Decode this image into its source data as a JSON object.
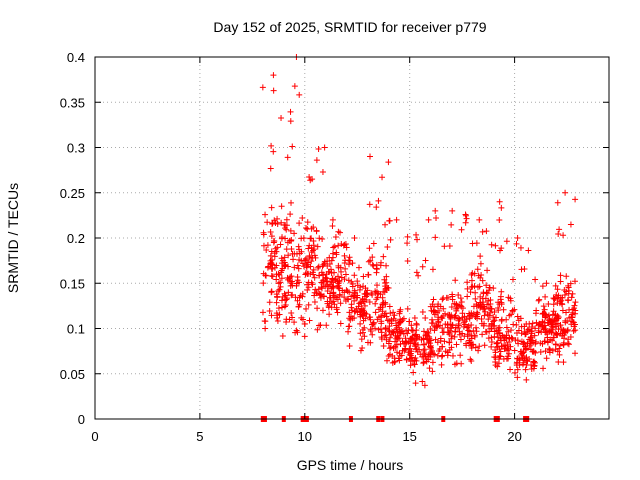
{
  "chart_data": {
    "type": "scatter",
    "title": "Day 152 of 2025, SRMTID for receiver p779",
    "xlabel": "GPS time / hours",
    "ylabel": "SRMTID / TECUs",
    "xlim": [
      0,
      24.5
    ],
    "ylim": [
      0,
      0.4
    ],
    "xticks": [
      0,
      5,
      10,
      15,
      20
    ],
    "xtick_labels": [
      "0",
      "5",
      "10",
      "15",
      "20"
    ],
    "yticks": [
      0,
      0.05,
      0.1,
      0.15,
      0.2,
      0.25,
      0.3,
      0.35,
      0.4
    ],
    "ytick_labels": [
      "0",
      "0.05",
      "0.1",
      "0.15",
      "0.2",
      "0.25",
      "0.3",
      "0.35",
      "0.4"
    ],
    "grid": true,
    "marker": "+",
    "series_color": "#ff0000",
    "zero_markers_x": [
      8.0,
      8.1,
      9.0,
      9.9,
      10.0,
      10.1,
      12.2,
      13.5,
      13.7,
      16.6,
      19.1,
      19.2,
      20.5,
      20.6
    ],
    "data_segments": [
      {
        "x_start": 8.0,
        "x_end": 9.0,
        "y_center": 0.17,
        "y_spread": 0.06,
        "peak": 0.38
      },
      {
        "x_start": 9.0,
        "x_end": 10.0,
        "y_center": 0.16,
        "y_spread": 0.06,
        "peak": 0.4
      },
      {
        "x_start": 10.0,
        "x_end": 11.0,
        "y_center": 0.16,
        "y_spread": 0.05,
        "peak": 0.3
      },
      {
        "x_start": 11.0,
        "x_end": 12.0,
        "y_center": 0.15,
        "y_spread": 0.04,
        "peak": 0.22
      },
      {
        "x_start": 12.0,
        "x_end": 13.0,
        "y_center": 0.12,
        "y_spread": 0.04,
        "peak": 0.2
      },
      {
        "x_start": 13.0,
        "x_end": 14.0,
        "y_center": 0.13,
        "y_spread": 0.05,
        "peak": 0.29
      },
      {
        "x_start": 14.0,
        "x_end": 15.0,
        "y_center": 0.09,
        "y_spread": 0.03,
        "peak": 0.22
      },
      {
        "x_start": 15.0,
        "x_end": 16.0,
        "y_center": 0.08,
        "y_spread": 0.03,
        "peak": 0.22
      },
      {
        "x_start": 16.0,
        "x_end": 17.0,
        "y_center": 0.1,
        "y_spread": 0.04,
        "peak": 0.23
      },
      {
        "x_start": 17.0,
        "x_end": 18.0,
        "y_center": 0.11,
        "y_spread": 0.04,
        "peak": 0.23
      },
      {
        "x_start": 18.0,
        "x_end": 19.0,
        "y_center": 0.12,
        "y_spread": 0.04,
        "peak": 0.22
      },
      {
        "x_start": 19.0,
        "x_end": 20.0,
        "y_center": 0.1,
        "y_spread": 0.04,
        "peak": 0.24
      },
      {
        "x_start": 20.0,
        "x_end": 21.0,
        "y_center": 0.08,
        "y_spread": 0.03,
        "peak": 0.2
      },
      {
        "x_start": 21.0,
        "x_end": 22.0,
        "y_center": 0.1,
        "y_spread": 0.03,
        "peak": 0.15
      },
      {
        "x_start": 22.0,
        "x_end": 22.9,
        "y_center": 0.11,
        "y_spread": 0.04,
        "peak": 0.25
      }
    ]
  }
}
